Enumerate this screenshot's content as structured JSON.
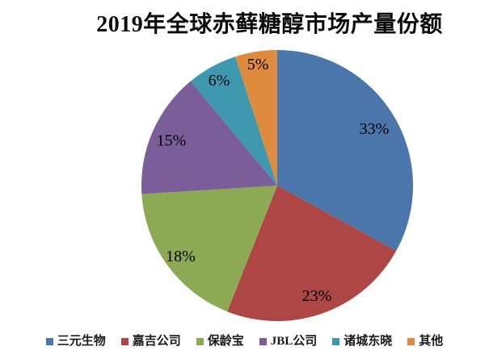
{
  "chart_data": {
    "type": "pie",
    "title": "2019年全球赤藓糖醇市场产量份额",
    "start_angle_deg": 0,
    "direction": "clockwise",
    "legend_position": "bottom",
    "background": "#FFFFFF",
    "label_color": "#000000",
    "series": [
      {
        "name": "三元生物",
        "value": 33,
        "label": "33%",
        "color": "#4A76AC",
        "label_radius": 0.83
      },
      {
        "name": "嘉吉公司",
        "value": 23,
        "label": "23%",
        "color": "#AD4644",
        "label_radius": 0.86
      },
      {
        "name": "保龄宝",
        "value": 18,
        "label": "18%",
        "color": "#8CA953",
        "label_radius": 0.88
      },
      {
        "name": "JBL公司",
        "value": 15,
        "label": "15%",
        "color": "#7A5D99",
        "label_radius": 0.85
      },
      {
        "name": "诸城东晓",
        "value": 6,
        "label": "6%",
        "color": "#3E99B0",
        "label_radius": 0.89
      },
      {
        "name": "其他",
        "value": 5,
        "label": "5%",
        "color": "#DE8A3F",
        "label_radius": 0.91
      }
    ]
  }
}
